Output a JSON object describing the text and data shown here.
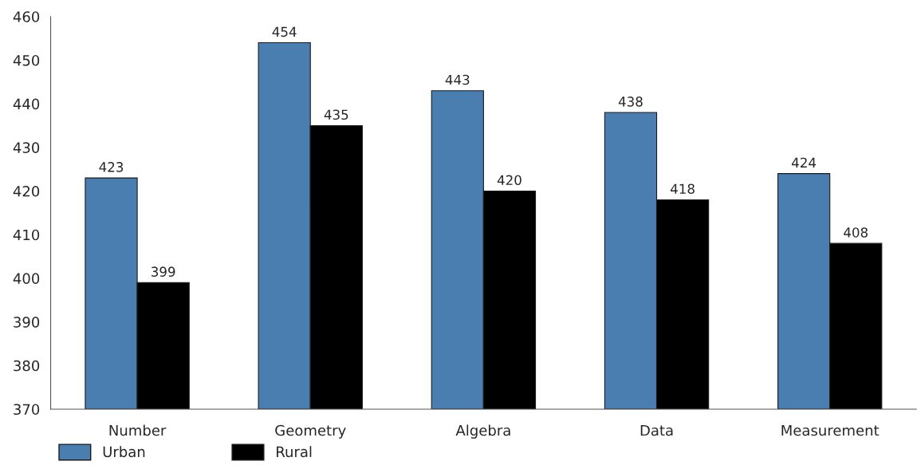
{
  "chart_data": {
    "type": "bar",
    "categories": [
      "Number",
      "Geometry",
      "Algebra",
      "Data",
      "Measurement"
    ],
    "series": [
      {
        "name": "Urban",
        "color": "#4a7eb0",
        "values": [
          423,
          454,
          443,
          438,
          424
        ]
      },
      {
        "name": "Rural",
        "color": "#000000",
        "values": [
          399,
          435,
          420,
          418,
          408
        ]
      }
    ],
    "ylim": [
      370,
      460
    ],
    "yticks": [
      370,
      380,
      390,
      400,
      410,
      420,
      430,
      440,
      450,
      460
    ],
    "grid": false,
    "legend": "bottom left",
    "data_labels": true
  }
}
